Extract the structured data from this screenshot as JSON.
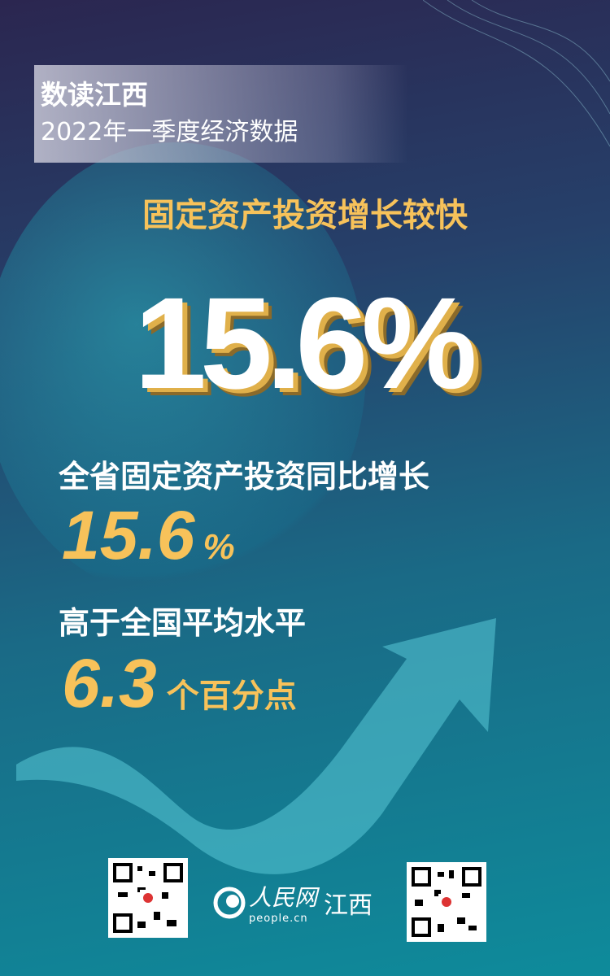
{
  "header": {
    "line1": "数读江西",
    "line2": "2022年一季度经济数据"
  },
  "subtitle": "固定资产投资增长较快",
  "big_number": "15.6%",
  "desc1": "全省固定资产投资同比增长",
  "value1": {
    "number": "15.6",
    "unit": "%"
  },
  "desc2": "高于全国平均水平",
  "value2": {
    "number": "6.3",
    "unit": "个百分点"
  },
  "footer": {
    "logo_text": "人民网",
    "logo_url_text": "people.cn",
    "region": "江西"
  },
  "colors": {
    "accent": "#f7c25a",
    "bg_top": "#2b2650",
    "bg_bottom": "#0e8b9b"
  }
}
